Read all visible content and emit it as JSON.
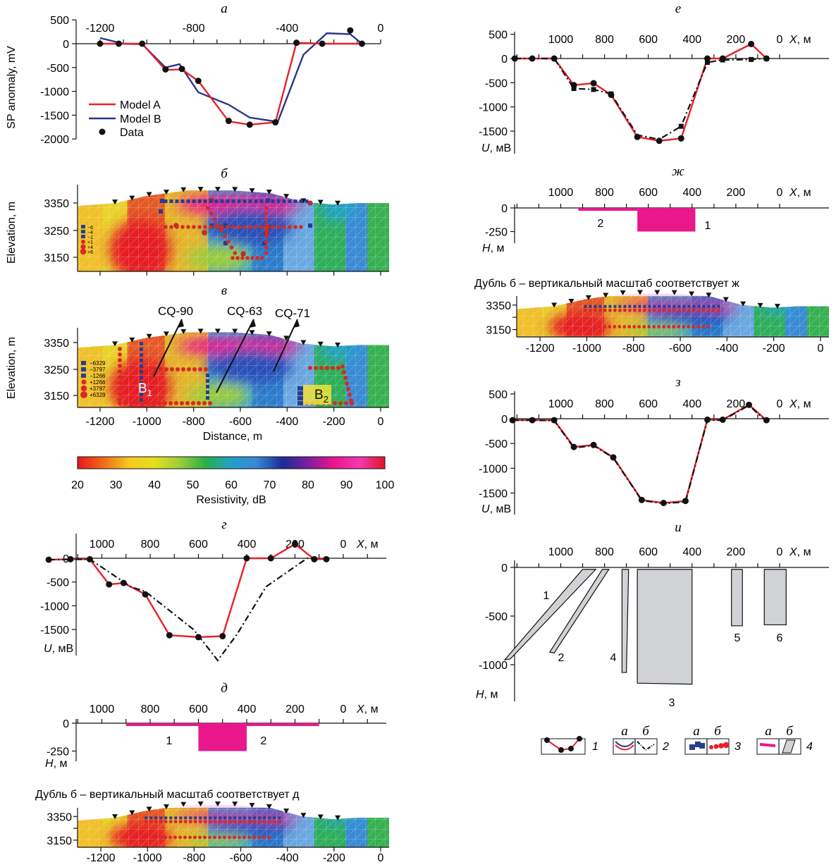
{
  "colors": {
    "model_a": "#e8202a",
    "model_b": "#2c3589",
    "data": "#111111",
    "magenta": "#e8188c",
    "body_fill": "#d0d2d6",
    "dashdot": "#111111"
  },
  "chart_data": [
    {
      "id": "a",
      "type": "line",
      "panel_label": "а",
      "ylabel": "SP anomaly, mV",
      "xlim": [
        -1300,
        0
      ],
      "ylim": [
        -2000,
        500
      ],
      "x_ticks": [
        "-1200",
        "-800",
        "-400",
        "0"
      ],
      "y_ticks": [
        "500",
        "0",
        "-500",
        "-1000",
        "-1500",
        "-2000"
      ],
      "legend": [
        "Model A",
        "Model B",
        "Data"
      ],
      "series": [
        {
          "name": "Model A",
          "x": [
            -1200,
            -1100,
            -1020,
            -920,
            -850,
            -780,
            -650,
            -560,
            -450,
            -360,
            -250,
            -80
          ],
          "y": [
            0,
            0,
            0,
            -550,
            -540,
            -780,
            -1630,
            -1700,
            -1650,
            20,
            0,
            0
          ]
        },
        {
          "name": "Model B",
          "x": [
            -1200,
            -1100,
            -1020,
            -920,
            -860,
            -780,
            -650,
            -560,
            -440,
            -330,
            -230,
            -130,
            -80
          ],
          "y": [
            120,
            0,
            -10,
            -500,
            -430,
            -1020,
            -1280,
            -1550,
            -1640,
            -230,
            220,
            200,
            0
          ]
        },
        {
          "name": "Data",
          "x": [
            -1200,
            -1120,
            -1020,
            -920,
            -850,
            -780,
            -650,
            -560,
            -450,
            -360,
            -250,
            -130,
            -80
          ],
          "y": [
            0,
            0,
            0,
            -540,
            -530,
            -780,
            -1620,
            -1700,
            -1650,
            20,
            0,
            280,
            0
          ]
        }
      ]
    },
    {
      "id": "b",
      "type": "heatmap",
      "panel_label": "б",
      "ylabel": "Elevation, m",
      "y_ticks": [
        "3350",
        "3250",
        "3150"
      ],
      "legend_values": [
        "−6",
        "−4",
        "−1",
        "+1",
        "+4",
        "+6"
      ]
    },
    {
      "id": "v",
      "type": "heatmap",
      "panel_label": "в",
      "ylabel": "Elevation, m",
      "xlabel": "Distance, m",
      "y_ticks": [
        "3350",
        "3250",
        "3150"
      ],
      "x_ticks": [
        "-1200",
        "-1000",
        "-800",
        "-600",
        "-400",
        "-200",
        "0"
      ],
      "legend_values": [
        "−6329",
        "−3797",
        "−1266",
        "+1266",
        "+3797",
        "+6329"
      ],
      "wells": [
        "CQ-90",
        "CQ-63",
        "CQ-71"
      ],
      "bodies": [
        {
          "name": "B",
          "sub": "1"
        },
        {
          "name": "B",
          "sub": "2"
        }
      ]
    },
    {
      "id": "colorbar",
      "type": "colorbar",
      "label": "Resistivity, dB",
      "ticks": [
        "20",
        "30",
        "40",
        "50",
        "60",
        "70",
        "80",
        "90",
        "100"
      ],
      "stops": [
        "#e8141e",
        "#f06a1a",
        "#f6c820",
        "#e6e01e",
        "#9ccc3a",
        "#28b04a",
        "#22a0c8",
        "#3a86d6",
        "#1a2c96",
        "#7c1e9c",
        "#ea148c",
        "#f23ab0",
        "#e2142a"
      ]
    },
    {
      "id": "g",
      "type": "line",
      "panel_label": "г",
      "ylabel_u": "U",
      "ylabel_unit": ", мВ",
      "xname": "X",
      "xunit": ", м",
      "x_ticks": [
        "1000",
        "800",
        "600",
        "400",
        "200",
        "0"
      ],
      "y_ticks": [
        "0",
        "-500",
        "-1000",
        "-1500"
      ],
      "series": [
        {
          "style": "red",
          "x": [
            1220,
            1130,
            1050,
            970,
            910,
            820,
            720,
            600,
            500,
            400,
            300,
            200,
            120,
            70
          ],
          "y": [
            -30,
            -20,
            -20,
            -550,
            -520,
            -760,
            -1620,
            -1660,
            -1640,
            0,
            0,
            300,
            -20,
            -20
          ]
        },
        {
          "style": "dashdot",
          "x": [
            1220,
            1050,
            880,
            820,
            620,
            520,
            440,
            320,
            150,
            110
          ],
          "y": [
            -30,
            -20,
            -600,
            -700,
            -1500,
            -2150,
            -1600,
            -600,
            0,
            -20
          ]
        },
        {
          "style": "dots",
          "x": [
            1220,
            1130,
            1050,
            970,
            910,
            820,
            720,
            600,
            500,
            400,
            300,
            200,
            120,
            70
          ],
          "y": [
            -30,
            -20,
            -20,
            -550,
            -520,
            -760,
            -1620,
            -1660,
            -1640,
            0,
            0,
            300,
            -20,
            -20
          ]
        }
      ]
    },
    {
      "id": "d",
      "type": "bar",
      "panel_label": "д",
      "ylabel_h": "H",
      "ylabel_unit": ", м",
      "xname": "X",
      "xunit": ", м",
      "x_ticks": [
        "1000",
        "800",
        "600",
        "400",
        "200",
        "0"
      ],
      "y_ticks": [
        "0",
        "-250"
      ],
      "bodies": [
        {
          "label": "1",
          "x0": 900,
          "x1": 100,
          "top": 0,
          "bottom": -20
        },
        {
          "label": "2",
          "x0": 600,
          "x1": 400,
          "top": 0,
          "bottom": -250
        }
      ]
    },
    {
      "id": "dubl_d",
      "type": "heatmap",
      "title": "Дубль б – вертикальный масштаб соответствует д",
      "y_ticks": [
        "3350",
        "3250",
        "3150"
      ],
      "x_ticks": [
        "-1200",
        "-1000",
        "-800",
        "-600",
        "-400",
        "-200",
        "0"
      ]
    },
    {
      "id": "e",
      "type": "line",
      "panel_label": "е",
      "ylabel_u": "U",
      "ylabel_unit": ", мВ",
      "xname": "X",
      "xunit": ", м",
      "x_ticks": [
        "1000",
        "800",
        "600",
        "400",
        "200",
        "0"
      ],
      "y_ticks": [
        "500",
        "0",
        "-500",
        "-1000",
        "-1500"
      ],
      "series": [
        {
          "style": "red",
          "x": [
            1210,
            1130,
            1030,
            940,
            850,
            770,
            650,
            550,
            450,
            330,
            260,
            130,
            60
          ],
          "y": [
            0,
            0,
            0,
            -550,
            -510,
            -750,
            -1620,
            -1700,
            -1650,
            0,
            0,
            300,
            0
          ]
        },
        {
          "style": "dashdot",
          "x": [
            1210,
            1030,
            940,
            850,
            770,
            650,
            550,
            450,
            330,
            260,
            130,
            60
          ],
          "y": [
            0,
            0,
            -620,
            -640,
            -730,
            -1580,
            -1670,
            -1400,
            -80,
            -30,
            -20,
            0
          ]
        },
        {
          "style": "squares",
          "x": [
            940,
            850,
            770,
            450,
            330,
            260,
            130,
            60
          ],
          "y": [
            -620,
            -640,
            -730,
            -1400,
            -80,
            -30,
            -20,
            0
          ]
        },
        {
          "style": "dots",
          "x": [
            1210,
            1130,
            1030,
            940,
            850,
            770,
            650,
            550,
            450,
            330,
            260,
            130,
            60
          ],
          "y": [
            0,
            0,
            0,
            -550,
            -510,
            -750,
            -1620,
            -1700,
            -1650,
            0,
            0,
            300,
            0
          ]
        }
      ]
    },
    {
      "id": "zh",
      "type": "bar",
      "panel_label": "ж",
      "ylabel_h": "H",
      "ylabel_unit": ", м",
      "xname": "X",
      "xunit": ", м",
      "x_ticks": [
        "1000",
        "800",
        "600",
        "400",
        "200",
        "0"
      ],
      "y_ticks": [
        "0",
        "-250"
      ],
      "bodies": [
        {
          "label": "2",
          "x0": 920,
          "x1": 650,
          "top": 0,
          "bottom": -20
        },
        {
          "label": "1",
          "x0": 650,
          "x1": 385,
          "top": 0,
          "bottom": -250
        }
      ]
    },
    {
      "id": "dubl_zh",
      "type": "heatmap",
      "title": "Дубль б – вертикальный масштаб соответствует ж",
      "y_ticks": [
        "3350",
        "3250",
        "3150"
      ],
      "x_ticks": [
        "-1200",
        "-1000",
        "-800",
        "-600",
        "-400",
        "-200",
        "0"
      ]
    },
    {
      "id": "z",
      "type": "line",
      "panel_label": "з",
      "ylabel_u": "U",
      "ylabel_unit": ", мВ",
      "xname": "X",
      "xunit": ", м",
      "x_ticks": [
        "1000",
        "800",
        "600",
        "400",
        "200",
        "0"
      ],
      "y_ticks": [
        "500",
        "0",
        "-500",
        "-1000",
        "-1500"
      ],
      "series": [
        {
          "style": "red",
          "x": [
            1220,
            1130,
            1030,
            940,
            850,
            760,
            630,
            530,
            430,
            330,
            260,
            140,
            60
          ],
          "y": [
            -30,
            -30,
            -30,
            -570,
            -530,
            -780,
            -1640,
            -1700,
            -1660,
            -20,
            -20,
            280,
            -30
          ]
        },
        {
          "style": "dashdot",
          "x": [
            1220,
            1130,
            1030,
            940,
            850,
            760,
            630,
            530,
            430,
            330,
            260,
            140,
            60
          ],
          "y": [
            -30,
            -30,
            -40,
            -590,
            -540,
            -790,
            -1650,
            -1710,
            -1680,
            -30,
            -30,
            270,
            -60
          ]
        },
        {
          "style": "dots",
          "x": [
            1220,
            1130,
            1030,
            940,
            850,
            760,
            630,
            530,
            430,
            330,
            260,
            140,
            60
          ],
          "y": [
            -30,
            -30,
            -30,
            -570,
            -530,
            -780,
            -1640,
            -1700,
            -1660,
            -20,
            -20,
            280,
            -30
          ]
        }
      ]
    },
    {
      "id": "i",
      "type": "diagram",
      "panel_label": "и",
      "ylabel_h": "H",
      "ylabel_unit": ", м",
      "xname": "X",
      "xunit": ", м",
      "x_ticks": [
        "1000",
        "800",
        "600",
        "400",
        "200",
        "0"
      ],
      "y_ticks": [
        "0",
        "-500",
        "-1000"
      ],
      "bodies": [
        {
          "label": "1",
          "poly": [
            [
              900,
              -20
            ],
            [
              840,
              -20
            ],
            [
              1230,
              -940
            ],
            [
              1270,
              -950
            ]
          ]
        },
        {
          "label": "2",
          "poly": [
            [
              810,
              -20
            ],
            [
              780,
              -20
            ],
            [
              1030,
              -880
            ],
            [
              1050,
              -870
            ]
          ]
        },
        {
          "label": "3",
          "poly": [
            [
              650,
              -20
            ],
            [
              400,
              -20
            ],
            [
              400,
              -1200
            ],
            [
              650,
              -1190
            ]
          ]
        },
        {
          "label": "4",
          "poly": [
            [
              720,
              -20
            ],
            [
              690,
              -20
            ],
            [
              700,
              -1080
            ],
            [
              720,
              -1080
            ]
          ]
        },
        {
          "label": "5",
          "poly": [
            [
              220,
              -20
            ],
            [
              170,
              -20
            ],
            [
              170,
              -600
            ],
            [
              220,
              -600
            ]
          ]
        },
        {
          "label": "6",
          "poly": [
            [
              70,
              -20
            ],
            [
              -30,
              -20
            ],
            [
              -30,
              -590
            ],
            [
              70,
              -590
            ]
          ]
        }
      ]
    }
  ],
  "legend_key": {
    "sub_a": "а",
    "sub_b": "б",
    "items": [
      "1",
      "2",
      "3",
      "4"
    ]
  }
}
